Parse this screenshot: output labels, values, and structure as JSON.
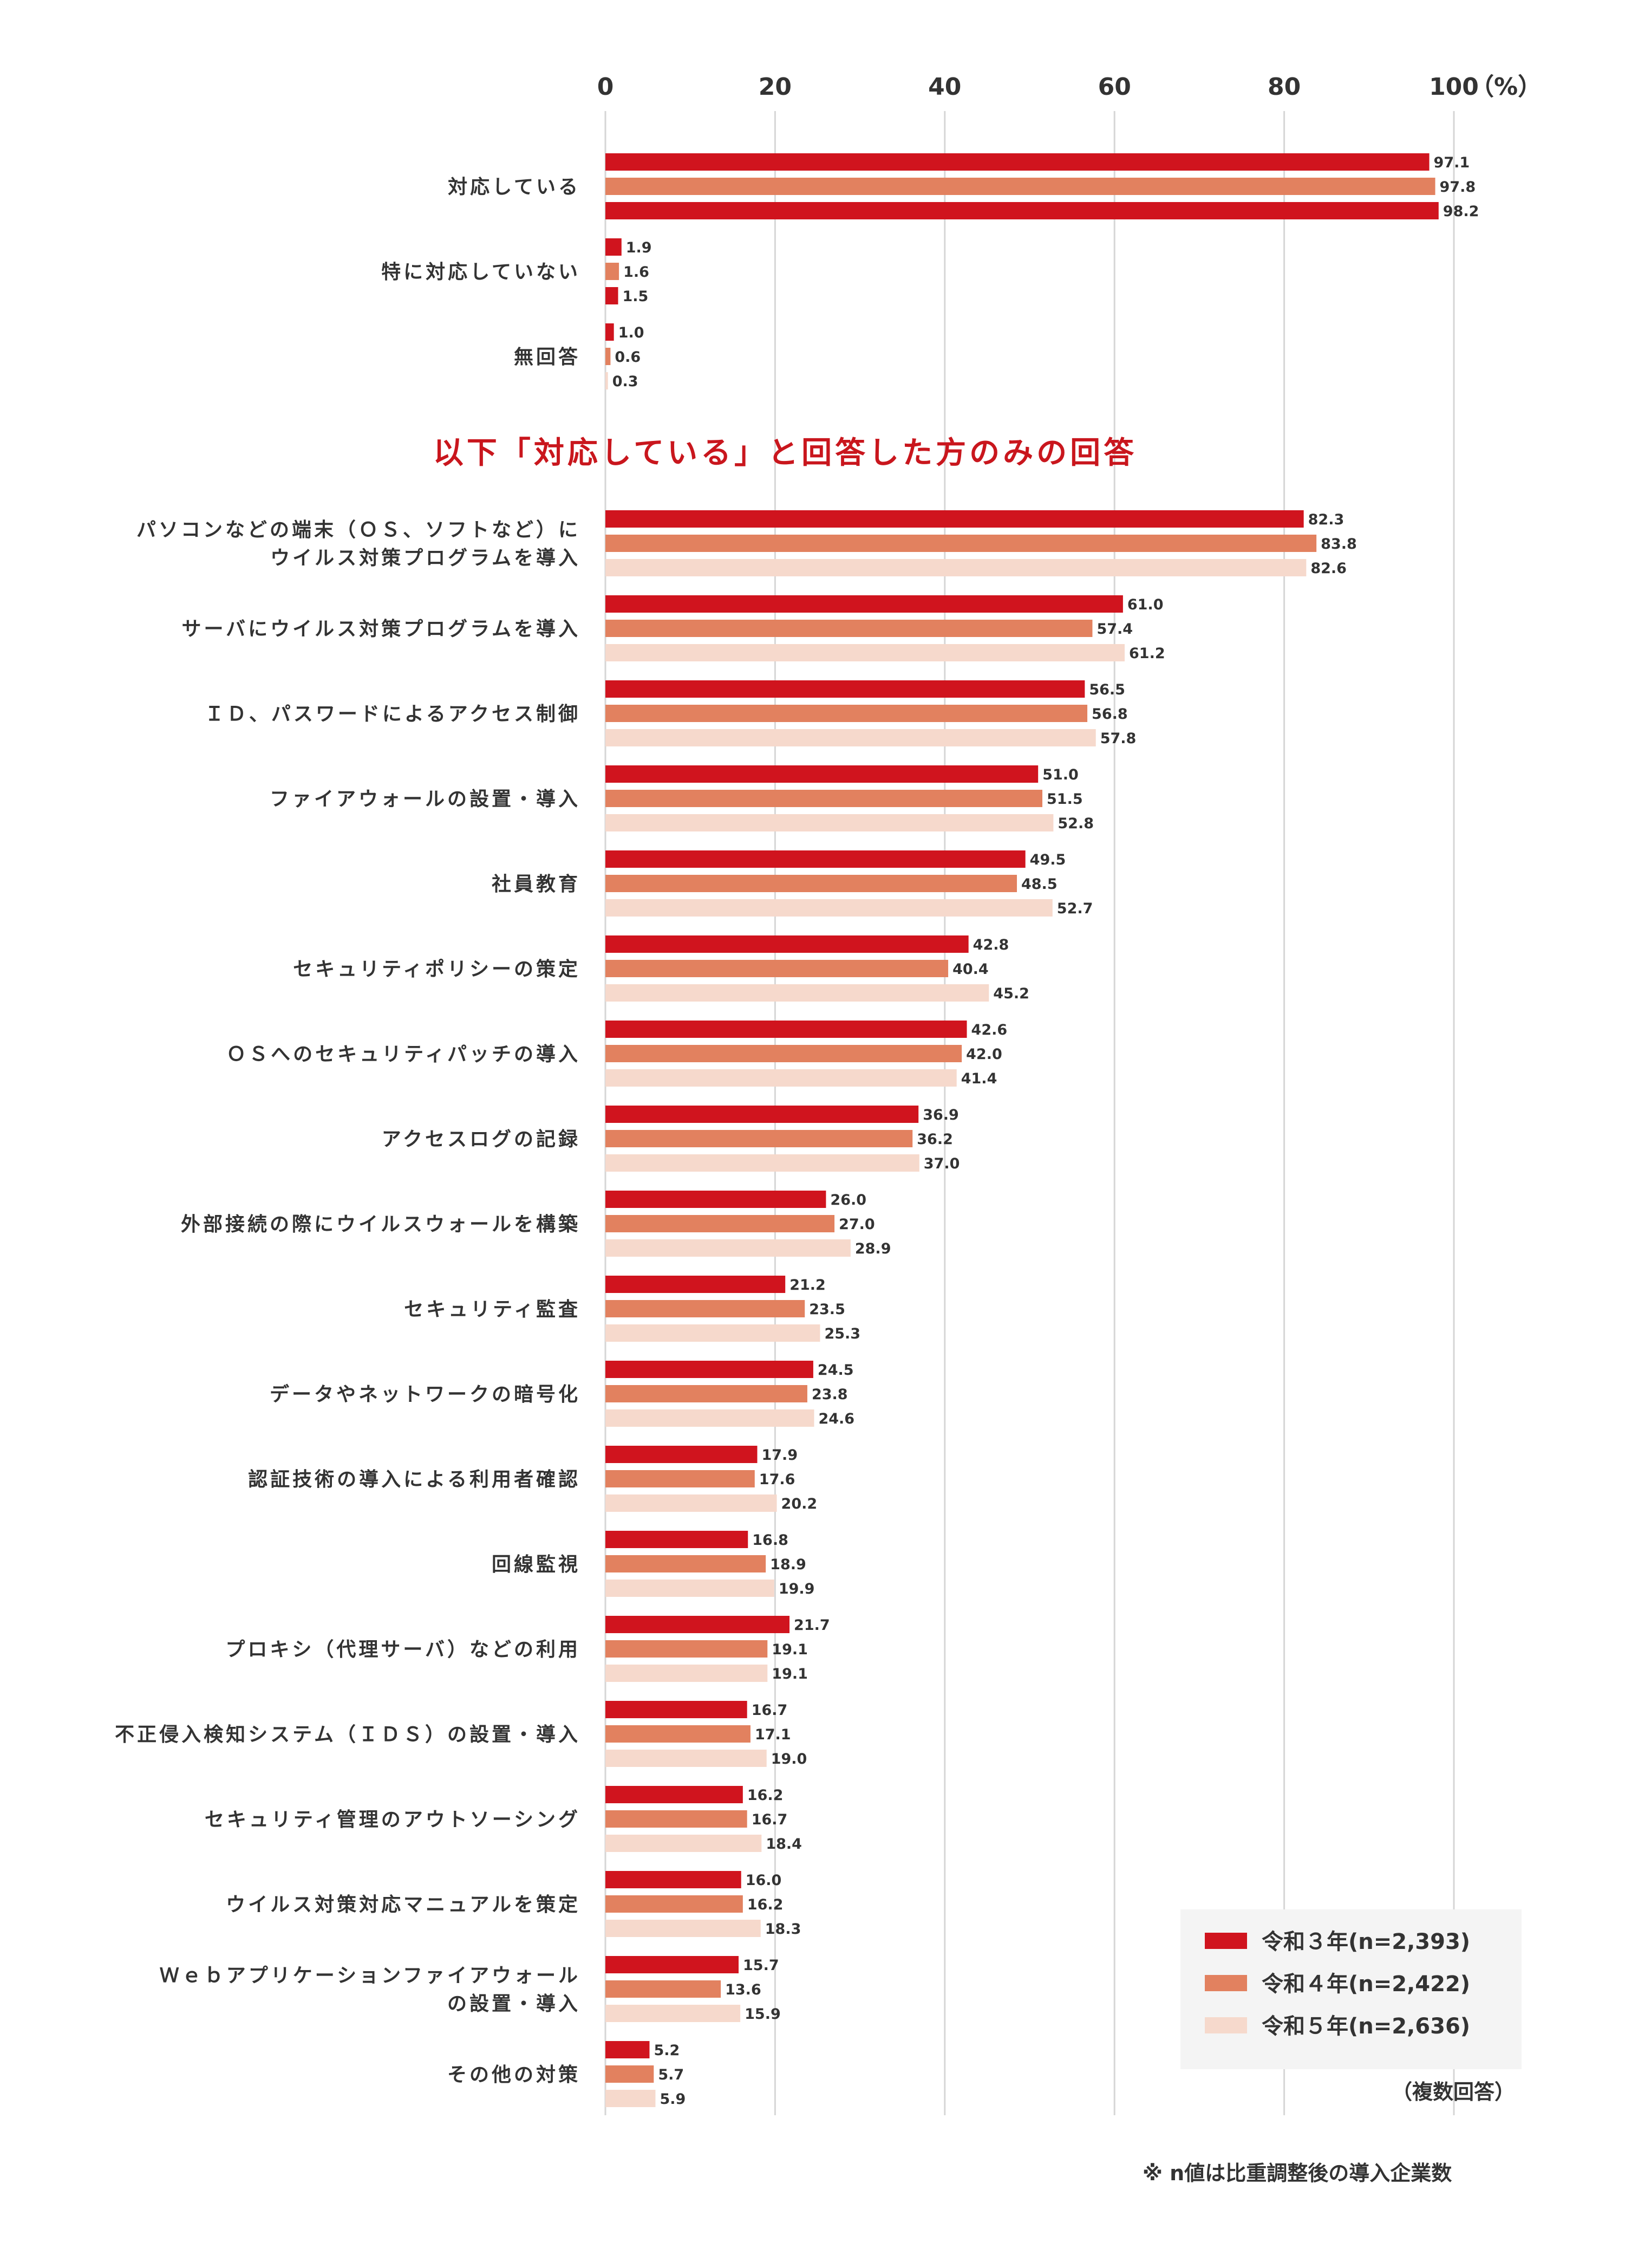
{
  "chart_data": {
    "type": "bar",
    "orientation": "horizontal",
    "axis": {
      "min": 0,
      "max": 100,
      "ticks": [
        0,
        20,
        40,
        60,
        80,
        100
      ],
      "unit_label": "（%）",
      "grid": true
    },
    "legend": {
      "placement": "bottom-right",
      "entries": [
        {
          "name": "令和３年(n=2,393)",
          "color": "#d0141e"
        },
        {
          "name": "令和４年(n=2,422)",
          "color": "#e2815f"
        },
        {
          "name": "令和５年(n=2,636)",
          "color": "#f6d9cc"
        }
      ]
    },
    "section_title": "以下「対応している」と回答した方のみの回答",
    "note_multi": "（複数回答）",
    "footnote": "※ n値は比重調整後の導入企業数",
    "group1": [
      {
        "label": [
          "対応している"
        ],
        "values": [
          97.1,
          97.8,
          98.2
        ],
        "colors": [
          "#d0141e",
          "#e2815f",
          "#d0141e"
        ]
      },
      {
        "label": [
          "特に対応していない"
        ],
        "values": [
          1.9,
          1.6,
          1.5
        ],
        "colors": [
          "#d0141e",
          "#e2815f",
          "#d0141e"
        ]
      },
      {
        "label": [
          "無回答"
        ],
        "values": [
          1.0,
          0.6,
          0.3
        ],
        "colors": [
          "#d0141e",
          "#e2815f",
          "#f6d9cc"
        ]
      }
    ],
    "group2": [
      {
        "label": [
          "パソコンなどの端末（ＯＳ、ソフトなど）に",
          "ウイルス対策プログラムを導入"
        ],
        "values": [
          82.3,
          83.8,
          82.6
        ]
      },
      {
        "label": [
          "サーバにウイルス対策プログラムを導入"
        ],
        "values": [
          61.0,
          57.4,
          61.2
        ]
      },
      {
        "label": [
          "ＩＤ、パスワードによるアクセス制御"
        ],
        "values": [
          56.5,
          56.8,
          57.8
        ]
      },
      {
        "label": [
          "ファイアウォールの設置・導入"
        ],
        "values": [
          51.0,
          51.5,
          52.8
        ]
      },
      {
        "label": [
          "社員教育"
        ],
        "values": [
          49.5,
          48.5,
          52.7
        ]
      },
      {
        "label": [
          "セキュリティポリシーの策定"
        ],
        "values": [
          42.8,
          40.4,
          45.2
        ]
      },
      {
        "label": [
          "ＯＳへのセキュリティパッチの導入"
        ],
        "values": [
          42.6,
          42.0,
          41.4
        ]
      },
      {
        "label": [
          "アクセスログの記録"
        ],
        "values": [
          36.9,
          36.2,
          37.0
        ]
      },
      {
        "label": [
          "外部接続の際にウイルスウォールを構築"
        ],
        "values": [
          26.0,
          27.0,
          28.9
        ]
      },
      {
        "label": [
          "セキュリティ監査"
        ],
        "values": [
          21.2,
          23.5,
          25.3
        ]
      },
      {
        "label": [
          "データやネットワークの暗号化"
        ],
        "values": [
          24.5,
          23.8,
          24.6
        ]
      },
      {
        "label": [
          "認証技術の導入による利用者確認"
        ],
        "values": [
          17.9,
          17.6,
          20.2
        ]
      },
      {
        "label": [
          "回線監視"
        ],
        "values": [
          16.8,
          18.9,
          19.9
        ]
      },
      {
        "label": [
          "プロキシ（代理サーバ）などの利用"
        ],
        "values": [
          21.7,
          19.1,
          19.1
        ]
      },
      {
        "label": [
          "不正侵入検知システム（ＩＤＳ）の設置・導入"
        ],
        "values": [
          16.7,
          17.1,
          19.0
        ]
      },
      {
        "label": [
          "セキュリティ管理のアウトソーシング"
        ],
        "values": [
          16.2,
          16.7,
          18.4
        ]
      },
      {
        "label": [
          "ウイルス対策対応マニュアルを策定"
        ],
        "values": [
          16.0,
          16.2,
          18.3
        ]
      },
      {
        "label": [
          "Ｗｅｂアプリケーションファイアウォール",
          "の設置・導入"
        ],
        "values": [
          15.7,
          13.6,
          15.9
        ]
      },
      {
        "label": [
          "その他の対策"
        ],
        "values": [
          5.2,
          5.7,
          5.9
        ]
      }
    ]
  }
}
